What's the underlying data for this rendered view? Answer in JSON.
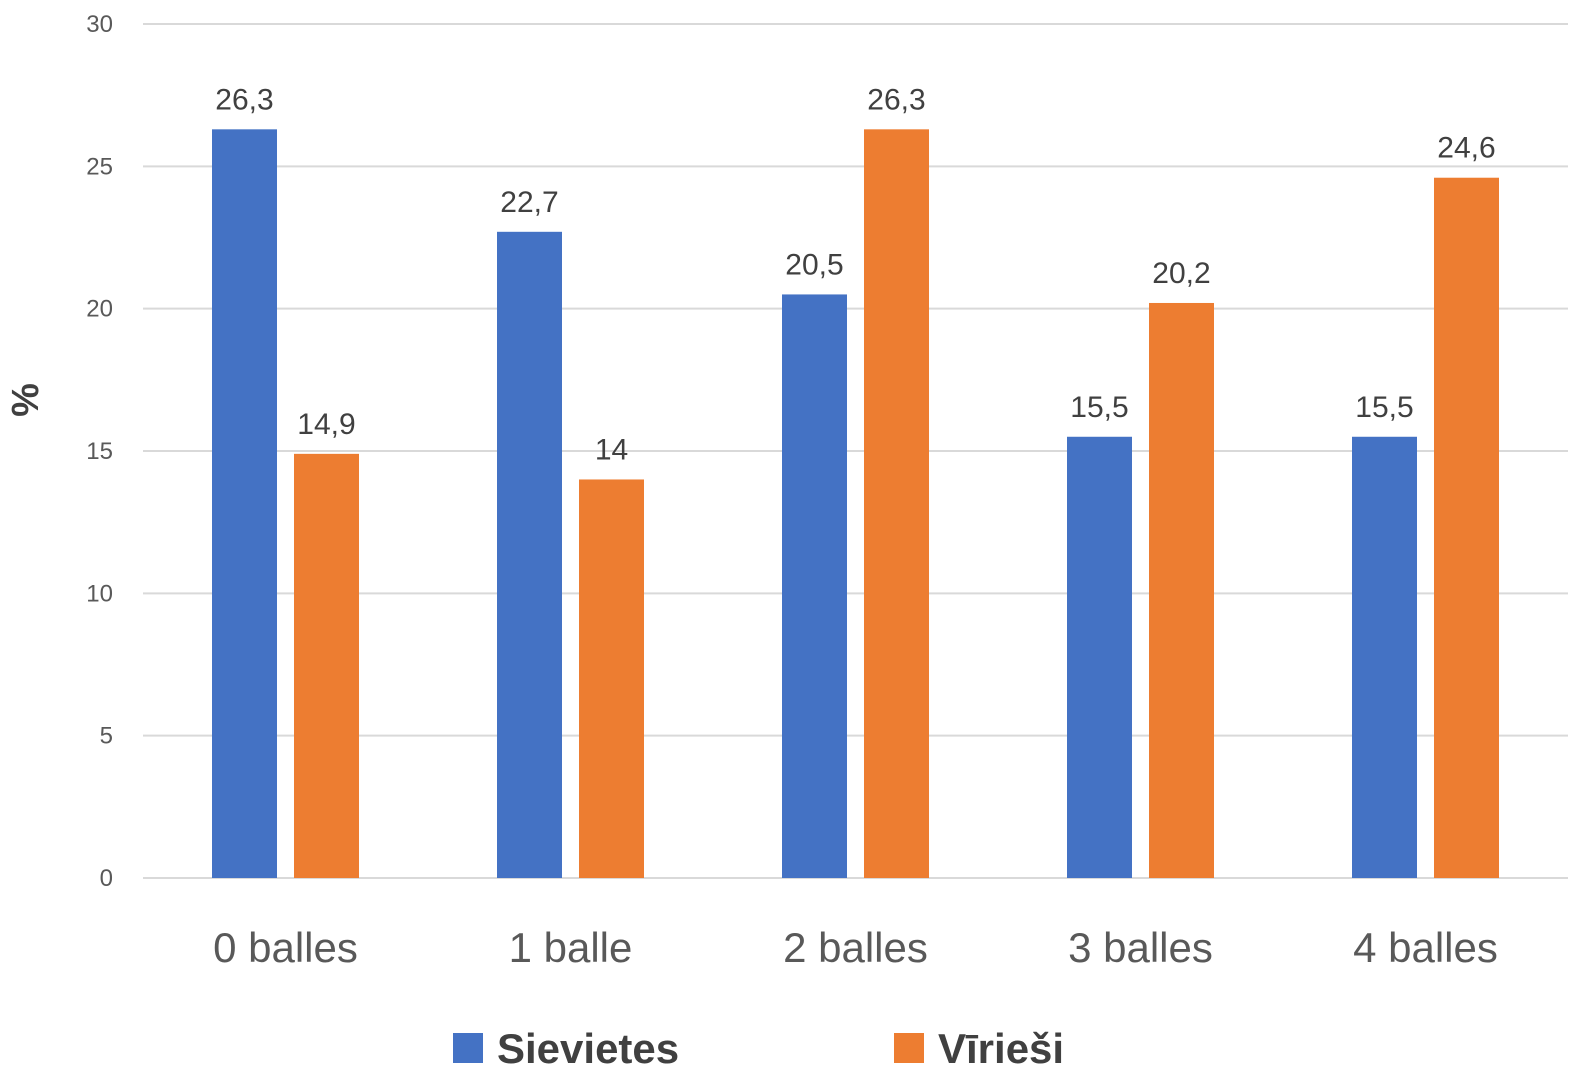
{
  "chart_data": {
    "type": "bar",
    "categories": [
      "0 balles",
      "1 balle",
      "2 balles",
      "3 balles",
      "4 balles"
    ],
    "series": [
      {
        "name": "Sievietes",
        "values": [
          26.3,
          22.7,
          20.5,
          15.5,
          15.5
        ],
        "labels": [
          "26,3",
          "22,7",
          "20,5",
          "15,5",
          "15,5"
        ],
        "color": "#4472C4"
      },
      {
        "name": "Vīrieši",
        "values": [
          14.9,
          14,
          26.3,
          20.2,
          24.6
        ],
        "labels": [
          "14,9",
          "14",
          "26,3",
          "20,2",
          "24,6"
        ],
        "color": "#ED7D31"
      }
    ],
    "ylabel": "%",
    "ylim": [
      0,
      30
    ],
    "yticks": [
      0,
      5,
      10,
      15,
      20,
      25,
      30
    ],
    "grid": true,
    "legend_position": "bottom",
    "gridline_color": "#D9D9D9"
  }
}
